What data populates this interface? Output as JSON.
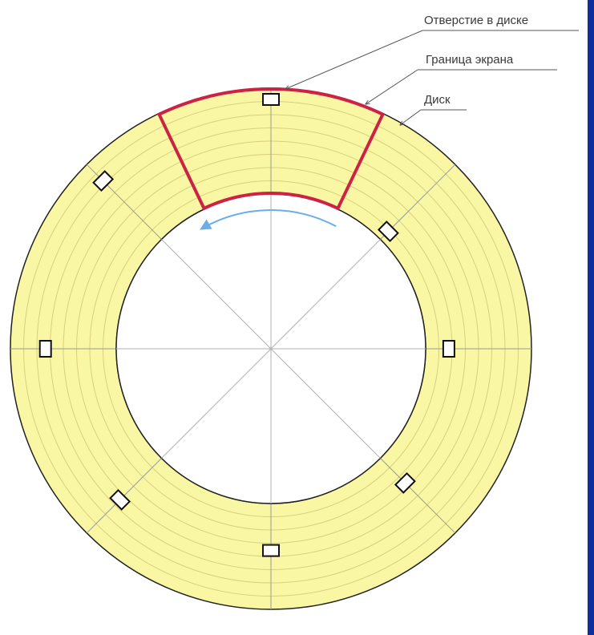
{
  "labels": {
    "hole": "Отверстие в диске",
    "screen_border": "Граница экрана",
    "disk": "Диск"
  },
  "colors": {
    "disk_fill": "#f9f7a4",
    "track_line": "#d8cf80",
    "outline": "#222222",
    "spoke": "#9a9a9a",
    "screen_border": "#cc2244",
    "rotation_arrow": "#6aaee8",
    "leader": "#555555",
    "frame_edge": "#0d2f9e"
  },
  "disk": {
    "hole_count": 8,
    "spoke_count": 8,
    "track_count": 7
  }
}
